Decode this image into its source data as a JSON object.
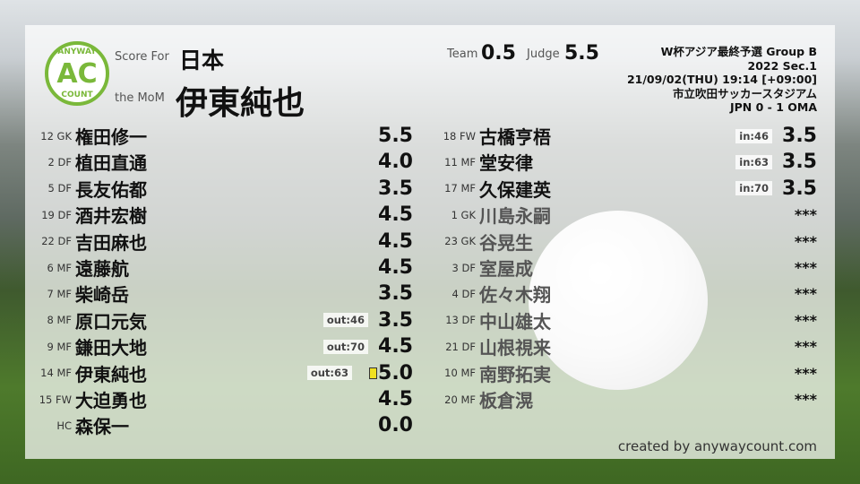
{
  "logo": {
    "top": "ANYWAY",
    "mid": "AC",
    "bottom": "COUNT"
  },
  "header": {
    "score_for_label": "Score For",
    "team": "日本",
    "mom_label": "the MoM",
    "mom": "伊東純也",
    "team_label": "Team",
    "team_score": "0.5",
    "judge_label": "Judge",
    "judge_score": "5.5"
  },
  "match": {
    "competition": "W杯アジア最終予選 Group B",
    "section": "2022 Sec.1",
    "datetime": "21/09/02(THU) 19:14 [+09:00]",
    "venue": "市立吹田サッカースタジアム",
    "result": "JPN 0 - 1 OMA"
  },
  "left_players": [
    {
      "pos": "12 GK",
      "name": "権田修一",
      "score": "5.5"
    },
    {
      "pos": "2 DF",
      "name": "植田直通",
      "score": "4.0"
    },
    {
      "pos": "5 DF",
      "name": "長友佑都",
      "score": "3.5"
    },
    {
      "pos": "19 DF",
      "name": "酒井宏樹",
      "score": "4.5"
    },
    {
      "pos": "22 DF",
      "name": "吉田麻也",
      "score": "4.5"
    },
    {
      "pos": "6 MF",
      "name": "遠藤航",
      "score": "4.5"
    },
    {
      "pos": "7 MF",
      "name": "柴崎岳",
      "score": "3.5"
    },
    {
      "pos": "8 MF",
      "name": "原口元気",
      "score": "3.5",
      "sub": "out:46"
    },
    {
      "pos": "9 MF",
      "name": "鎌田大地",
      "score": "4.5",
      "sub": "out:70"
    },
    {
      "pos": "14 MF",
      "name": "伊東純也",
      "score": "5.0",
      "sub": "out:63",
      "card": "yellow"
    },
    {
      "pos": "15 FW",
      "name": "大迫勇也",
      "score": "4.5"
    },
    {
      "pos": "HC",
      "name": "森保一",
      "score": "0.0"
    }
  ],
  "right_players": [
    {
      "pos": "18 FW",
      "name": "古橋亨梧",
      "score": "3.5",
      "sub": "in:46"
    },
    {
      "pos": "11 MF",
      "name": "堂安律",
      "score": "3.5",
      "sub": "in:63"
    },
    {
      "pos": "17 MF",
      "name": "久保建英",
      "score": "3.5",
      "sub": "in:70"
    },
    {
      "pos": "1 GK",
      "name": "川島永嗣",
      "score": "***",
      "unused": true
    },
    {
      "pos": "23 GK",
      "name": "谷晃生",
      "score": "***",
      "unused": true
    },
    {
      "pos": "3 DF",
      "name": "室屋成",
      "score": "***",
      "unused": true
    },
    {
      "pos": "4 DF",
      "name": "佐々木翔",
      "score": "***",
      "unused": true
    },
    {
      "pos": "13 DF",
      "name": "中山雄太",
      "score": "***",
      "unused": true
    },
    {
      "pos": "21 DF",
      "name": "山根視来",
      "score": "***",
      "unused": true
    },
    {
      "pos": "10 MF",
      "name": "南野拓実",
      "score": "***",
      "unused": true
    },
    {
      "pos": "20 MF",
      "name": "板倉滉",
      "score": "***",
      "unused": true
    }
  ],
  "credit": "created by anywaycount.com",
  "colors": {
    "logo_green": "#7ab83a",
    "yellow_card": "#f0e020"
  }
}
